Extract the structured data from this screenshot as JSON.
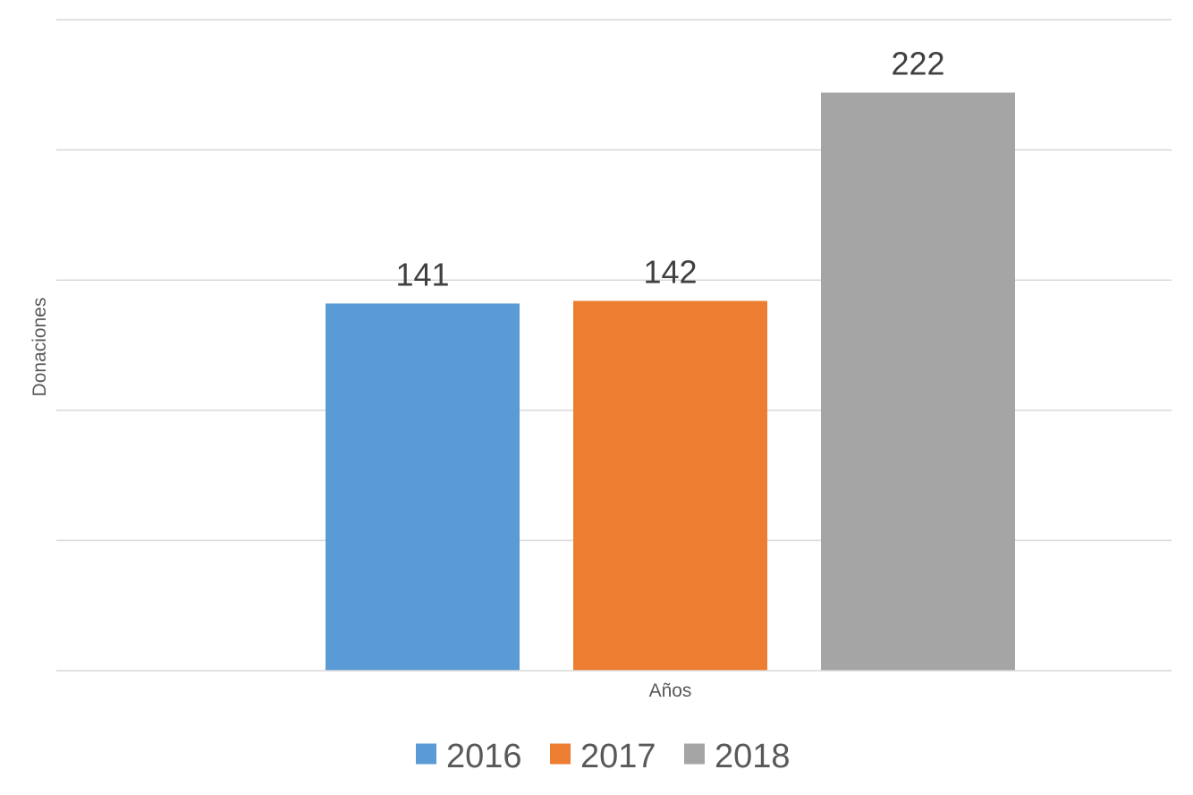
{
  "chart_data": {
    "type": "bar",
    "xlabel": "Años",
    "ylabel": "Donaciones",
    "ylim": [
      0,
      250
    ],
    "grid": true,
    "legend_position": "bottom",
    "data_labels": true,
    "categories": [
      ""
    ],
    "series": [
      {
        "name": "2016",
        "values": [
          141
        ],
        "color": "#5b9bd5"
      },
      {
        "name": "2017",
        "values": [
          142
        ],
        "color": "#ed7d31"
      },
      {
        "name": "2018",
        "values": [
          222
        ],
        "color": "#a5a5a5"
      }
    ]
  }
}
